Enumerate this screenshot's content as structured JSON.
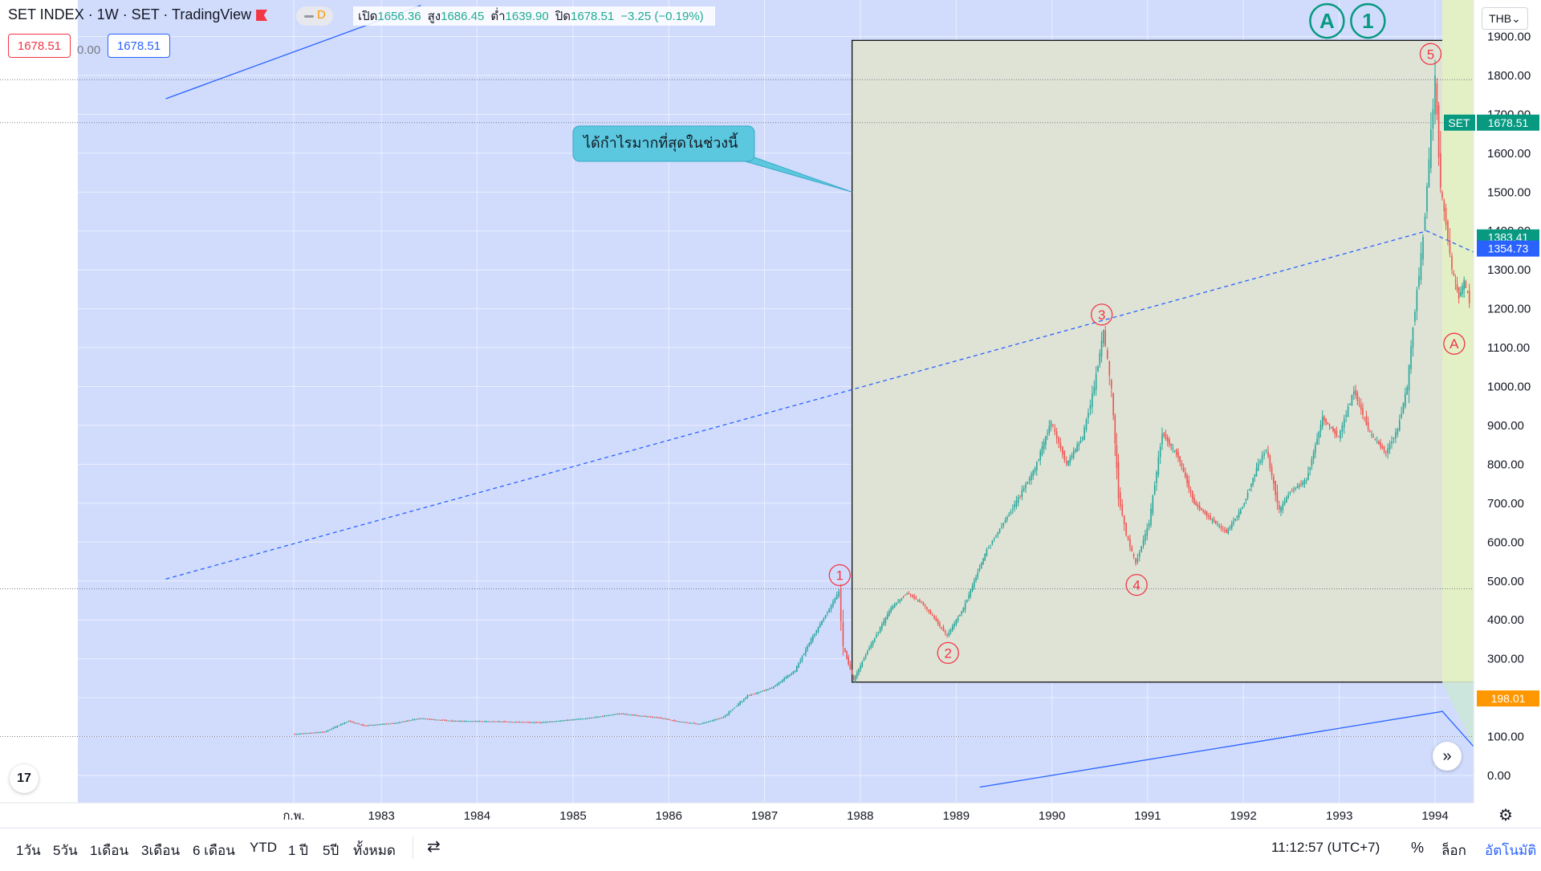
{
  "header": {
    "symbol_title": "SET INDEX · 1W · SET · TradingView",
    "interval_chip": "D",
    "ohlc": [
      {
        "label": "เปิด",
        "value": "1656.36"
      },
      {
        "label": "สูง",
        "value": "1686.45"
      },
      {
        "label": "ต่ำ",
        "value": "1639.90"
      },
      {
        "label": "ปิด",
        "value": "1678.51"
      }
    ],
    "change": "−3.25 (−0.19%)",
    "sell_price": "1678.51",
    "spread": "0.00",
    "buy_price": "1678.51"
  },
  "currency": "THB",
  "annotation_text": "ได้กำไรมากที่สุดในช่วงนี้",
  "wave_labels": [
    {
      "label": "1",
      "x": "1987-10-15",
      "y": 515,
      "color": "#f23645",
      "size": "small"
    },
    {
      "label": "2",
      "x": "1988-12-01",
      "y": 315,
      "color": "#f23645",
      "size": "small"
    },
    {
      "label": "3",
      "x": "1990-07-10",
      "y": 1185,
      "color": "#f23645",
      "size": "small"
    },
    {
      "label": "4",
      "x": "1990-11-20",
      "y": 490,
      "color": "#f23645",
      "size": "small"
    },
    {
      "label": "5",
      "x": "1993-12-15",
      "y": 1855,
      "color": "#f23645",
      "size": "small"
    },
    {
      "label": "A",
      "x": "1994-03-15",
      "y": 1110,
      "color": "#f23645",
      "size": "small"
    },
    {
      "label": "A",
      "x": "1992-11-15",
      "y": 1940,
      "color": "#089981",
      "size": "large"
    },
    {
      "label": "1",
      "x": "1993-04-20",
      "y": 1940,
      "color": "#089981",
      "size": "large"
    }
  ],
  "price_tags": [
    {
      "symbol": "SET",
      "value": "1678.51",
      "y": 1678.51,
      "color": "#089981"
    },
    {
      "value": "1383.41",
      "y": 1383.41,
      "color": "#089981"
    },
    {
      "value": "1354.73",
      "y": 1354.73,
      "color": "#2962ff"
    },
    {
      "value": "198.01",
      "y": 198.01,
      "color": "#ff9800"
    }
  ],
  "bottom_bar": {
    "ranges": [
      "1วัน",
      "5วัน",
      "1เดือน",
      "3เดือน",
      "6 เดือน",
      "YTD",
      "1 ปี",
      "5ปี",
      "ทั้งหมด"
    ],
    "clock": "11:12:57 (UTC+7)",
    "percent": "%",
    "log": "ล็อก",
    "auto": "อัตโนมัติ"
  },
  "chart_data": {
    "type": "line",
    "title": "SET INDEX · 1W · SET",
    "xlabel": "",
    "ylabel": "",
    "ylim": [
      -30,
      1960
    ],
    "y_ticks": [
      0,
      100,
      200,
      300,
      400,
      500,
      600,
      700,
      800,
      900,
      1000,
      1100,
      1200,
      1300,
      1400,
      1500,
      1600,
      1700,
      1800,
      1900
    ],
    "y_tick_labels": [
      "0.00",
      "100.00",
      "200.00",
      "300.00",
      "400.00",
      "500.00",
      "600.00",
      "700.00",
      "800.00",
      "900.00",
      "1000.00",
      "1100.00",
      "1200.00",
      "1300.00",
      "1400.00",
      "1500.00",
      "1600.00",
      "1700.00",
      "1800.00",
      "1900.00"
    ],
    "x_ticks": [
      "1982-02-01",
      "1983-01-01",
      "1984-01-01",
      "1985-01-01",
      "1986-01-01",
      "1987-01-01",
      "1988-01-01",
      "1989-01-01",
      "1990-01-01",
      "1991-01-01",
      "1992-01-01",
      "1993-01-01",
      "1994-01-01"
    ],
    "x_tick_labels": [
      "ก.พ.",
      "1983",
      "1984",
      "1985",
      "1986",
      "1987",
      "1988",
      "1989",
      "1990",
      "1991",
      "1992",
      "1993",
      "1994"
    ],
    "grid": true,
    "series": [
      {
        "x": "1982-02-01",
        "y": 106
      },
      {
        "x": "1982-06-01",
        "y": 112
      },
      {
        "x": "1982-09-01",
        "y": 140
      },
      {
        "x": "1982-11-01",
        "y": 128
      },
      {
        "x": "1983-03-01",
        "y": 135
      },
      {
        "x": "1983-06-01",
        "y": 147
      },
      {
        "x": "1983-10-01",
        "y": 140
      },
      {
        "x": "1984-03-01",
        "y": 139
      },
      {
        "x": "1984-09-01",
        "y": 136
      },
      {
        "x": "1985-03-01",
        "y": 147
      },
      {
        "x": "1985-07-01",
        "y": 159
      },
      {
        "x": "1985-12-01",
        "y": 148
      },
      {
        "x": "1986-02-01",
        "y": 140
      },
      {
        "x": "1986-05-01",
        "y": 132
      },
      {
        "x": "1986-08-01",
        "y": 150
      },
      {
        "x": "1986-11-01",
        "y": 205
      },
      {
        "x": "1987-02-01",
        "y": 225
      },
      {
        "x": "1987-05-01",
        "y": 270
      },
      {
        "x": "1987-07-01",
        "y": 350
      },
      {
        "x": "1987-09-01",
        "y": 420
      },
      {
        "x": "1987-10-15",
        "y": 472
      },
      {
        "x": "1987-11-01",
        "y": 330
      },
      {
        "x": "1987-12-10",
        "y": 245
      },
      {
        "x": "1988-02-01",
        "y": 320
      },
      {
        "x": "1988-05-01",
        "y": 430
      },
      {
        "x": "1988-07-01",
        "y": 470
      },
      {
        "x": "1988-09-01",
        "y": 440
      },
      {
        "x": "1988-12-01",
        "y": 360
      },
      {
        "x": "1989-02-01",
        "y": 430
      },
      {
        "x": "1989-05-01",
        "y": 580
      },
      {
        "x": "1989-08-01",
        "y": 680
      },
      {
        "x": "1989-11-01",
        "y": 790
      },
      {
        "x": "1990-01-01",
        "y": 910
      },
      {
        "x": "1990-03-01",
        "y": 800
      },
      {
        "x": "1990-05-01",
        "y": 870
      },
      {
        "x": "1990-06-15",
        "y": 1000
      },
      {
        "x": "1990-07-20",
        "y": 1143
      },
      {
        "x": "1990-08-20",
        "y": 990
      },
      {
        "x": "1990-09-15",
        "y": 720
      },
      {
        "x": "1990-10-15",
        "y": 620
      },
      {
        "x": "1990-11-20",
        "y": 545
      },
      {
        "x": "1991-01-10",
        "y": 650
      },
      {
        "x": "1991-03-01",
        "y": 880
      },
      {
        "x": "1991-05-01",
        "y": 820
      },
      {
        "x": "1991-07-01",
        "y": 700
      },
      {
        "x": "1991-09-01",
        "y": 660
      },
      {
        "x": "1991-11-01",
        "y": 625
      },
      {
        "x": "1992-01-01",
        "y": 690
      },
      {
        "x": "1992-03-01",
        "y": 800
      },
      {
        "x": "1992-04-01",
        "y": 840
      },
      {
        "x": "1992-05-20",
        "y": 680
      },
      {
        "x": "1992-07-01",
        "y": 730
      },
      {
        "x": "1992-09-01",
        "y": 760
      },
      {
        "x": "1992-11-01",
        "y": 920
      },
      {
        "x": "1993-01-01",
        "y": 870
      },
      {
        "x": "1993-03-01",
        "y": 990
      },
      {
        "x": "1993-05-01",
        "y": 880
      },
      {
        "x": "1993-07-01",
        "y": 830
      },
      {
        "x": "1993-08-15",
        "y": 890
      },
      {
        "x": "1993-09-20",
        "y": 1000
      },
      {
        "x": "1993-10-20",
        "y": 1200
      },
      {
        "x": "1993-11-20",
        "y": 1380
      },
      {
        "x": "1993-12-20",
        "y": 1650
      },
      {
        "x": "1994-01-05",
        "y": 1789
      },
      {
        "x": "1994-01-25",
        "y": 1510
      },
      {
        "x": "1994-02-15",
        "y": 1420
      },
      {
        "x": "1994-03-10",
        "y": 1300
      },
      {
        "x": "1994-04-05",
        "y": 1230
      },
      {
        "x": "1994-04-25",
        "y": 1270
      },
      {
        "x": "1994-05-15",
        "y": 1220
      }
    ],
    "overlays": {
      "channel_upper": [
        {
          "x": "1980-10-01",
          "y": 1740
        },
        {
          "x": "1983-06-01",
          "y": 1980
        }
      ],
      "channel_lower": [
        {
          "x": "1989-04-01",
          "y": -30
        },
        {
          "x": "1994-02-01",
          "y": 165
        }
      ],
      "channel_mid": [
        {
          "x": "1980-10-01",
          "y": 505
        },
        {
          "x": "1993-12-01",
          "y": 1400
        },
        {
          "x": "1994-06-15",
          "y": 1340
        }
      ],
      "highlight_rect": {
        "x0": "1987-12-01",
        "x1": "1994-06-01",
        "y0": 240,
        "y1": 1890
      },
      "hlines": [
        1789,
        1678.51,
        480,
        100
      ],
      "callout_anchor": {
        "x": "1987-12-01",
        "y": 1500
      }
    }
  }
}
